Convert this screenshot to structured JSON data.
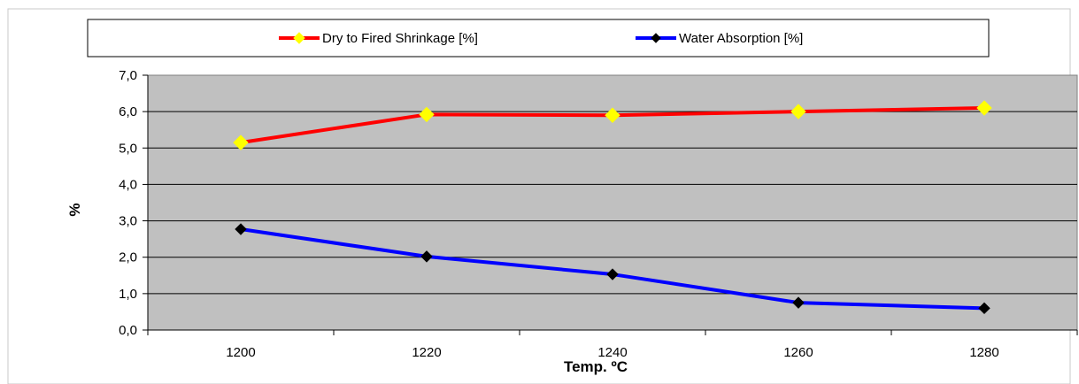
{
  "chart_data": {
    "type": "line",
    "title": "",
    "xlabel": "Temp. ºC",
    "ylabel": "%",
    "x": [
      1200,
      1220,
      1240,
      1260,
      1280
    ],
    "x_tick_labels": [
      "1200",
      "1220",
      "1240",
      "1260",
      "1280"
    ],
    "ylim": [
      0,
      7
    ],
    "y_tick_labels": [
      "0,0",
      "1,0",
      "2,0",
      "3,0",
      "4,0",
      "5,0",
      "6,0",
      "7,0"
    ],
    "grid": "horizontal",
    "legend_position": "top",
    "plot_background": "#c0c0c0",
    "series": [
      {
        "name": "Dry to Fired Shrinkage [%]",
        "values": [
          5.15,
          5.92,
          5.9,
          6.0,
          6.1
        ],
        "line_color": "#ff0000",
        "marker_color": "#ffff00",
        "marker": "diamond"
      },
      {
        "name": "Water Absorption [%]",
        "values": [
          2.77,
          2.02,
          1.53,
          0.75,
          0.6
        ],
        "line_color": "#0000ff",
        "marker_color": "#000000",
        "marker": "diamond"
      }
    ]
  }
}
